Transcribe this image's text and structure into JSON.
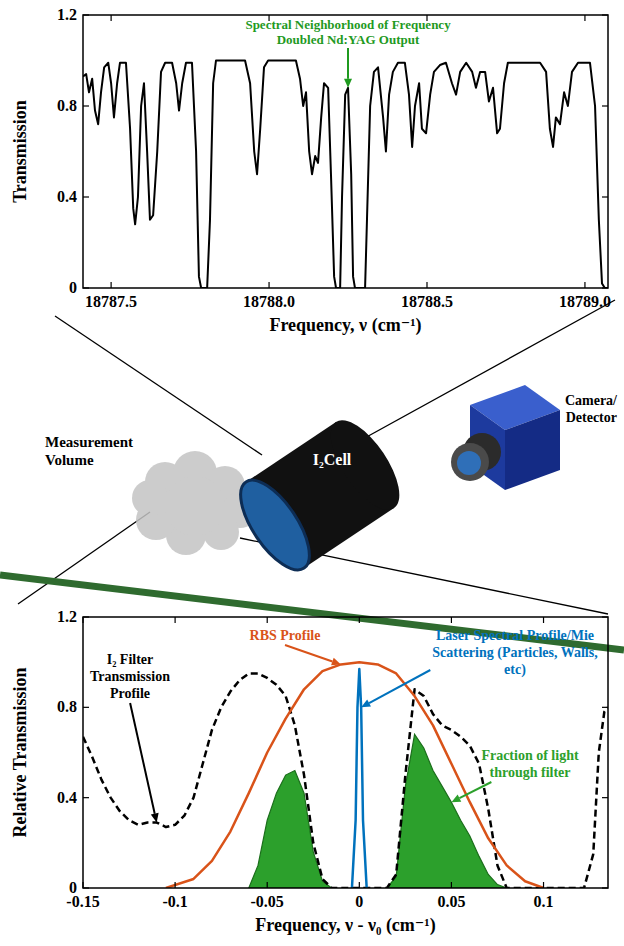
{
  "chart_data": [
    {
      "type": "line",
      "xlabel": "Frequency, ν (cm⁻¹)",
      "ylabel": "Transmission",
      "xlim": [
        18787.411,
        18789.073
      ],
      "xticks": [
        {
          "value": 18787.5,
          "label": "18787.5"
        },
        {
          "value": 18788,
          "label": "18788.0"
        },
        18788.5,
        {
          "value": 18789,
          "label": "18789.0"
        }
      ],
      "ylim": [
        0,
        1.2
      ],
      "yticks": [
        0,
        0.4,
        0.8,
        1.2
      ],
      "series": [
        {
          "color": "#000000",
          "x": [
            18787.411,
            18787.421,
            18787.43,
            18787.44,
            18787.449,
            18787.459,
            18787.468,
            18787.478,
            18787.491,
            18787.5,
            18787.509,
            18787.519,
            18787.528,
            18787.547,
            18787.56,
            18787.57,
            18787.576,
            18787.585,
            18787.595,
            18787.604,
            18787.614,
            18787.623,
            18787.633,
            18787.646,
            18787.658,
            18787.671,
            18787.693,
            18787.706,
            18787.715,
            18787.725,
            18787.737,
            18787.756,
            18787.769,
            18787.778,
            18787.785,
            18787.804,
            18787.813,
            18787.823,
            18787.832,
            18787.924,
            18787.94,
            18787.953,
            18787.962,
            18787.972,
            18787.984,
            18787.997,
            18788.085,
            18788.098,
            18788.108,
            18788.117,
            18788.127,
            18788.136,
            18788.146,
            18788.155,
            18788.165,
            18788.174,
            18788.187,
            18788.196,
            18788.206,
            18788.212,
            18788.225,
            18788.231,
            18788.241,
            18788.25,
            18788.26,
            18788.266,
            18788.272,
            18788.304,
            18788.31,
            18788.32,
            18788.332,
            18788.345,
            18788.361,
            18788.37,
            18788.38,
            18788.392,
            18788.408,
            18788.43,
            18788.443,
            18788.453,
            18788.462,
            18788.475,
            18788.484,
            18788.497,
            18788.51,
            18788.522,
            18788.541,
            18788.56,
            18788.579,
            18788.592,
            18788.605,
            18788.624,
            18788.643,
            18788.655,
            18788.668,
            18788.684,
            18788.696,
            18788.709,
            18788.722,
            18788.731,
            18788.744,
            18788.756,
            18788.858,
            18788.877,
            18788.889,
            18788.899,
            18788.908,
            18788.921,
            18788.934,
            18788.946,
            18788.959,
            18788.978,
            18789.016,
            18789.032,
            18789.044,
            18789.054,
            18789.063,
            18789.073
          ],
          "values": [
            0.93,
            0.94,
            0.86,
            0.92,
            0.78,
            0.72,
            0.86,
            0.97,
            0.99,
            0.9,
            0.75,
            0.9,
            0.99,
            0.99,
            0.7,
            0.35,
            0.28,
            0.4,
            0.8,
            0.9,
            0.6,
            0.3,
            0.32,
            0.6,
            0.95,
            0.99,
            0.99,
            0.9,
            0.78,
            0.9,
            0.99,
            0.99,
            0.6,
            0.05,
            0,
            0,
            0.3,
            0.9,
            1,
            1,
            0.9,
            0.6,
            0.5,
            0.7,
            0.97,
            1,
            1,
            0.92,
            0.8,
            0.86,
            0.6,
            0.5,
            0.58,
            0.55,
            0.75,
            0.9,
            0.88,
            0.5,
            0.05,
            0,
            0,
            0.4,
            0.85,
            0.88,
            0.5,
            0.05,
            0,
            0,
            0.3,
            0.8,
            0.95,
            0.97,
            0.75,
            0.6,
            0.85,
            0.95,
            0.99,
            0.99,
            0.85,
            0.62,
            0.8,
            0.9,
            0.7,
            0.68,
            0.85,
            0.95,
            0.98,
            0.99,
            0.9,
            0.85,
            0.95,
            0.99,
            0.95,
            0.88,
            0.95,
            0.95,
            0.82,
            0.88,
            0.68,
            0.7,
            0.9,
            0.99,
            0.99,
            0.95,
            0.7,
            0.62,
            0.75,
            0.72,
            0.86,
            0.8,
            0.95,
            0.99,
            0.99,
            0.8,
            0.3,
            0.02,
            0,
            0
          ]
        }
      ],
      "annotations": [
        {
          "text": "Spectral Neighborhood of Frequency Doubled Nd:YAG Output",
          "x": 18788.25,
          "y": 0.88,
          "color": "#1f9a1f"
        }
      ]
    },
    {
      "type": "line",
      "xlabel": "Frequency, ν - ν₀ (cm⁻¹)",
      "ylabel": "Relative Transmission",
      "xlim": [
        -0.15,
        0.135
      ],
      "xticks": [
        -0.15,
        -0.1,
        -0.05,
        0,
        0.05,
        0.1
      ],
      "ylim": [
        0,
        1.2
      ],
      "yticks": [
        0,
        0.4,
        0.8,
        1.2
      ],
      "series": [
        {
          "name": "I₂ Filter Transmission Profile",
          "color": "#000000",
          "line_style": "dashed",
          "x": [
            -0.15,
            -0.145,
            -0.14,
            -0.135,
            -0.13,
            -0.125,
            -0.12,
            -0.115,
            -0.11,
            -0.105,
            -0.1,
            -0.095,
            -0.09,
            -0.085,
            -0.08,
            -0.075,
            -0.07,
            -0.065,
            -0.06,
            -0.055,
            -0.05,
            -0.045,
            -0.04,
            -0.035,
            -0.03,
            -0.025,
            -0.02,
            -0.015,
            0.015,
            0.02,
            0.025,
            0.03,
            0.035,
            0.04,
            0.045,
            0.05,
            0.055,
            0.06,
            0.065,
            0.07,
            0.075,
            0.08,
            0.122,
            0.127,
            0.13,
            0.133,
            0.135
          ],
          "values": [
            0.67,
            0.58,
            0.48,
            0.4,
            0.34,
            0.3,
            0.28,
            0.29,
            0.29,
            0.27,
            0.28,
            0.32,
            0.4,
            0.55,
            0.7,
            0.8,
            0.87,
            0.92,
            0.95,
            0.95,
            0.93,
            0.9,
            0.85,
            0.72,
            0.5,
            0.2,
            0.04,
            0,
            0,
            0.06,
            0.5,
            0.88,
            0.85,
            0.77,
            0.72,
            0.7,
            0.67,
            0.63,
            0.55,
            0.35,
            0.1,
            0,
            0,
            0.15,
            0.6,
            0.78,
            0.8
          ]
        },
        {
          "name": "RBS Profile",
          "color": "#d95319",
          "x": [
            -0.105,
            -0.09,
            -0.08,
            -0.07,
            -0.06,
            -0.05,
            -0.04,
            -0.03,
            -0.02,
            -0.01,
            0,
            0.01,
            0.02,
            0.03,
            0.04,
            0.05,
            0.06,
            0.07,
            0.08,
            0.09,
            0.1
          ],
          "values": [
            0,
            0.04,
            0.12,
            0.25,
            0.42,
            0.6,
            0.75,
            0.88,
            0.96,
            0.99,
            1,
            0.99,
            0.95,
            0.85,
            0.72,
            0.55,
            0.38,
            0.22,
            0.1,
            0.03,
            0
          ]
        },
        {
          "name": "Laser Spectral Profile/Mie Scattering (Particles, Walls, etc)",
          "color": "#0072bd",
          "x": [
            -0.004,
            -0.002,
            -0.001,
            0,
            0.001,
            0.002,
            0.004
          ],
          "values": [
            0,
            0.3,
            0.8,
            0.97,
            0.8,
            0.3,
            0
          ]
        },
        {
          "name": "Fraction of light through filter",
          "type": "area",
          "color": "#2ca02c",
          "x": [
            -0.06,
            -0.055,
            -0.05,
            -0.045,
            -0.04,
            -0.035,
            -0.03,
            -0.025,
            -0.02,
            -0.015,
            0,
            0.015,
            0.02,
            0.025,
            0.03,
            0.035,
            0.04,
            0.045,
            0.05,
            0.055,
            0.06,
            0.065,
            0.07,
            0.075,
            0.08
          ],
          "values": [
            0,
            0.1,
            0.3,
            0.42,
            0.5,
            0.52,
            0.42,
            0.16,
            0.03,
            0,
            null,
            0,
            0.05,
            0.45,
            0.68,
            0.62,
            0.52,
            0.45,
            0.38,
            0.3,
            0.23,
            0.14,
            0.06,
            0.015,
            0
          ]
        }
      ]
    }
  ],
  "diagram": {
    "labels": {
      "measurement_volume": "Measurement Volume",
      "cell": "I₂Cell",
      "detector": "Camera/ Detector"
    }
  }
}
